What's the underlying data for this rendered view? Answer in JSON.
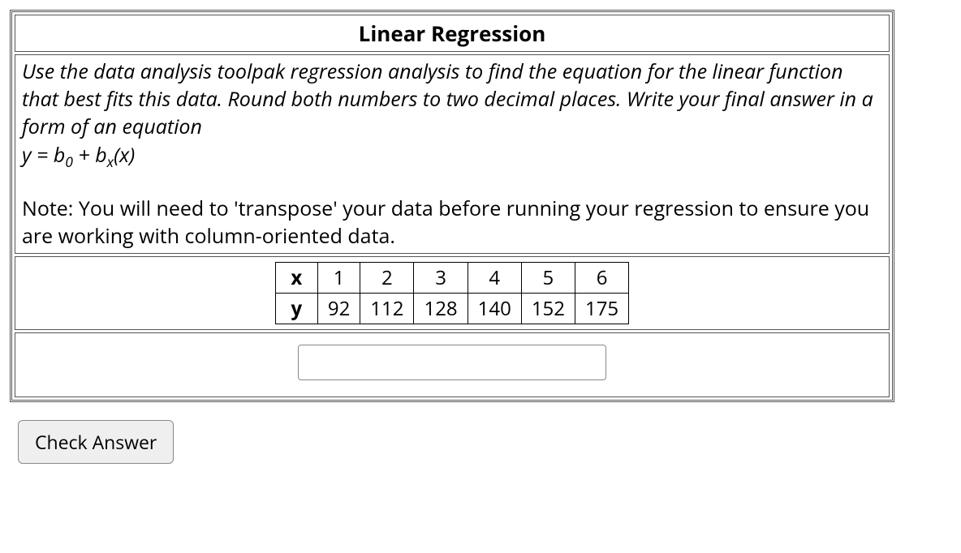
{
  "title": "Linear Regression",
  "instructions": {
    "para1": "Use the data analysis toolpak regression analysis to find the equation for the linear function that best fits this data. Round both numbers to two decimal places. Write your final answer in a form of an equation",
    "eq_y": "y",
    "eq_eq": " = ",
    "eq_b": "b",
    "eq_sub0": "0",
    "eq_plus": " + ",
    "eq_b2": "b",
    "eq_subx": "x",
    "eq_paren": "(x)",
    "note": "Note: You will need to 'transpose' your data before running your regression to ensure you are working with column-oriented data."
  },
  "dataTable": {
    "rows": [
      {
        "label": "x",
        "cells": [
          "1",
          "2",
          "3",
          "4",
          "5",
          "6"
        ]
      },
      {
        "label": "y",
        "cells": [
          "92",
          "112",
          "128",
          "140",
          "152",
          "175"
        ]
      }
    ]
  },
  "answer": {
    "value": "",
    "placeholder": ""
  },
  "button": {
    "checkLabel": "Check Answer"
  },
  "style": {
    "borderColor": "#555555",
    "tableBorder": "#000000",
    "background": "#ffffff",
    "buttonBg": "#efefef"
  }
}
